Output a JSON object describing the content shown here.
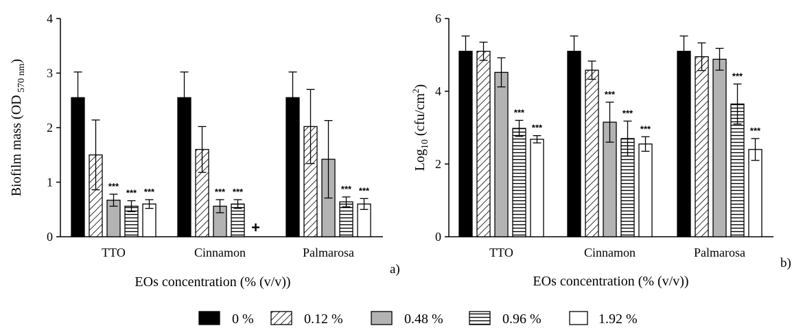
{
  "legend": [
    {
      "label": "0 %",
      "fill": "solid"
    },
    {
      "label": "0.12 %",
      "fill": "diagonal"
    },
    {
      "label": "0.48 %",
      "fill": "gray"
    },
    {
      "label": "0.96 %",
      "fill": "horizontal"
    },
    {
      "label": "1.92 %",
      "fill": "white"
    }
  ],
  "colors": {
    "solid": "#000000",
    "gray": "#b3b3b3",
    "white": "#ffffff",
    "stroke": "#000000"
  },
  "chart_data": [
    {
      "type": "bar",
      "panel_label": "a)",
      "xlabel": "EOs concentration (% (v/v))",
      "ylabel": {
        "main": "Biofilm mass (OD",
        "sub": "570 nm",
        "close": ")"
      },
      "ylim": [
        0,
        4
      ],
      "yticks": [
        "0",
        "1",
        "2",
        "3",
        "4"
      ],
      "categories": [
        "TTO",
        "Cinnamon",
        "Palmarosa"
      ],
      "series": [
        {
          "name": "0 %",
          "values": [
            2.55,
            2.55,
            2.55
          ],
          "errors": [
            0.47,
            0.47,
            0.47
          ],
          "sig": [
            "",
            "",
            ""
          ]
        },
        {
          "name": "0.12 %",
          "values": [
            1.5,
            1.6,
            2.02
          ],
          "errors": [
            0.64,
            0.42,
            0.68
          ],
          "sig": [
            "",
            "",
            ""
          ]
        },
        {
          "name": "0.48 %",
          "values": [
            0.67,
            0.56,
            1.42
          ],
          "errors": [
            0.11,
            0.12,
            0.71
          ],
          "sig": [
            "***",
            "***",
            ""
          ]
        },
        {
          "name": "0.96 %",
          "values": [
            0.56,
            0.6,
            0.64
          ],
          "errors": [
            0.1,
            0.08,
            0.09
          ],
          "sig": [
            "***",
            "***",
            "***"
          ]
        },
        {
          "name": "1.92 %",
          "values": [
            0.6,
            null,
            0.6
          ],
          "errors": [
            0.08,
            null,
            0.1
          ],
          "sig": [
            "***",
            "+",
            "***"
          ]
        }
      ]
    },
    {
      "type": "bar",
      "panel_label": "b)",
      "xlabel": "EOs concentration (% (v/v))",
      "ylabel": {
        "main": "Log",
        "sub": "10",
        "rest": " (cfu/cm",
        "sup": "2",
        "close": ")"
      },
      "ylim": [
        0,
        6
      ],
      "yticks": [
        "0",
        "2",
        "4",
        "6"
      ],
      "categories": [
        "TTO",
        "Cinnamon",
        "Palmarosa"
      ],
      "series": [
        {
          "name": "0 %",
          "values": [
            5.1,
            5.1,
            5.1
          ],
          "errors": [
            0.42,
            0.42,
            0.42
          ],
          "sig": [
            "",
            "",
            ""
          ]
        },
        {
          "name": "0.12 %",
          "values": [
            5.1,
            4.58,
            4.95
          ],
          "errors": [
            0.25,
            0.25,
            0.38
          ],
          "sig": [
            "",
            "",
            ""
          ]
        },
        {
          "name": "0.48 %",
          "values": [
            4.52,
            3.15,
            4.88
          ],
          "errors": [
            0.4,
            0.55,
            0.3
          ],
          "sig": [
            "",
            "***",
            ""
          ]
        },
        {
          "name": "0.96 %",
          "values": [
            2.98,
            2.7,
            3.65
          ],
          "errors": [
            0.22,
            0.48,
            0.55
          ],
          "sig": [
            "***",
            "***",
            "***"
          ]
        },
        {
          "name": "1.92 %",
          "values": [
            2.68,
            2.55,
            2.4
          ],
          "errors": [
            0.1,
            0.2,
            0.3
          ],
          "sig": [
            "***",
            "***",
            "***"
          ]
        }
      ]
    }
  ]
}
